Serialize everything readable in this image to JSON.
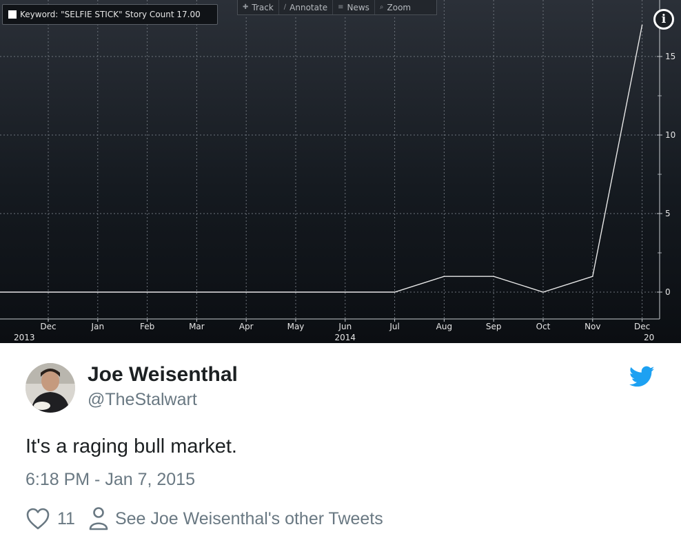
{
  "chart": {
    "legend": {
      "text": "Keyword: \"SELFIE STICK\" Story Count 17.00",
      "swatch_color": "#ffffff"
    },
    "toolbar": [
      {
        "icon": "crosshair-icon",
        "glyph": "✚",
        "label": "Track"
      },
      {
        "icon": "pencil-icon",
        "glyph": "∕",
        "label": "Annotate"
      },
      {
        "icon": "news-icon",
        "glyph": "≡",
        "label": "News"
      },
      {
        "icon": "magnifier-icon",
        "glyph": "⌕",
        "label": "Zoom"
      }
    ],
    "info_glyph": "i"
  },
  "chart_data": {
    "type": "line",
    "categories": [
      "Dec",
      "Jan",
      "Feb",
      "Mar",
      "Apr",
      "May",
      "Jun",
      "Jul",
      "Aug",
      "Sep",
      "Oct",
      "Nov",
      "Dec"
    ],
    "year_labels": [
      {
        "text": "2013",
        "index": 0
      },
      {
        "text": "2014",
        "index": 6
      },
      {
        "text": "20",
        "index": 12
      }
    ],
    "series": [
      {
        "values": [
          0,
          0,
          0,
          0,
          0,
          0,
          0,
          0,
          1,
          1,
          0,
          1,
          17
        ],
        "color": "#e8e8e8"
      }
    ],
    "y_ticks": [
      0,
      5,
      10,
      15
    ],
    "ylim": [
      -1.5,
      18
    ],
    "grid": true,
    "y_axis_side": "right"
  },
  "tweet": {
    "author_name": "Joe Weisenthal",
    "handle": "@TheStalwart",
    "text": "It's a raging bull market.",
    "timestamp": "6:18 PM - Jan 7, 2015",
    "like_count": "11",
    "profile_link": "See Joe Weisenthal's other Tweets",
    "brand_color": "#1da1f2"
  }
}
